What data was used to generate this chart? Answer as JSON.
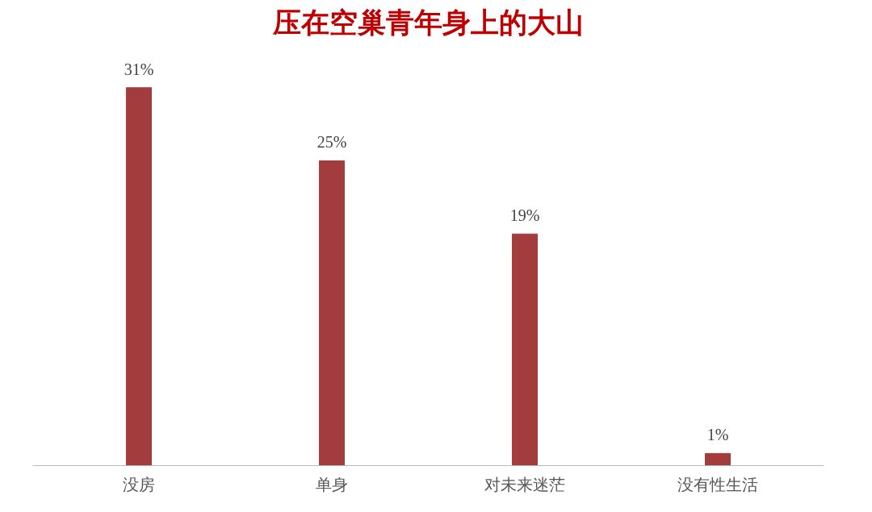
{
  "chart_data": {
    "type": "bar",
    "title": "压在空巢青年身上的大山",
    "categories": [
      "没房",
      "单身",
      "对未来迷茫",
      "没有性生活"
    ],
    "values": [
      31,
      25,
      19,
      1
    ],
    "value_labels": [
      "31%",
      "25%",
      "19%",
      "1%"
    ],
    "color": "#a33c3c",
    "tick_labels": "x",
    "grid": false
  }
}
